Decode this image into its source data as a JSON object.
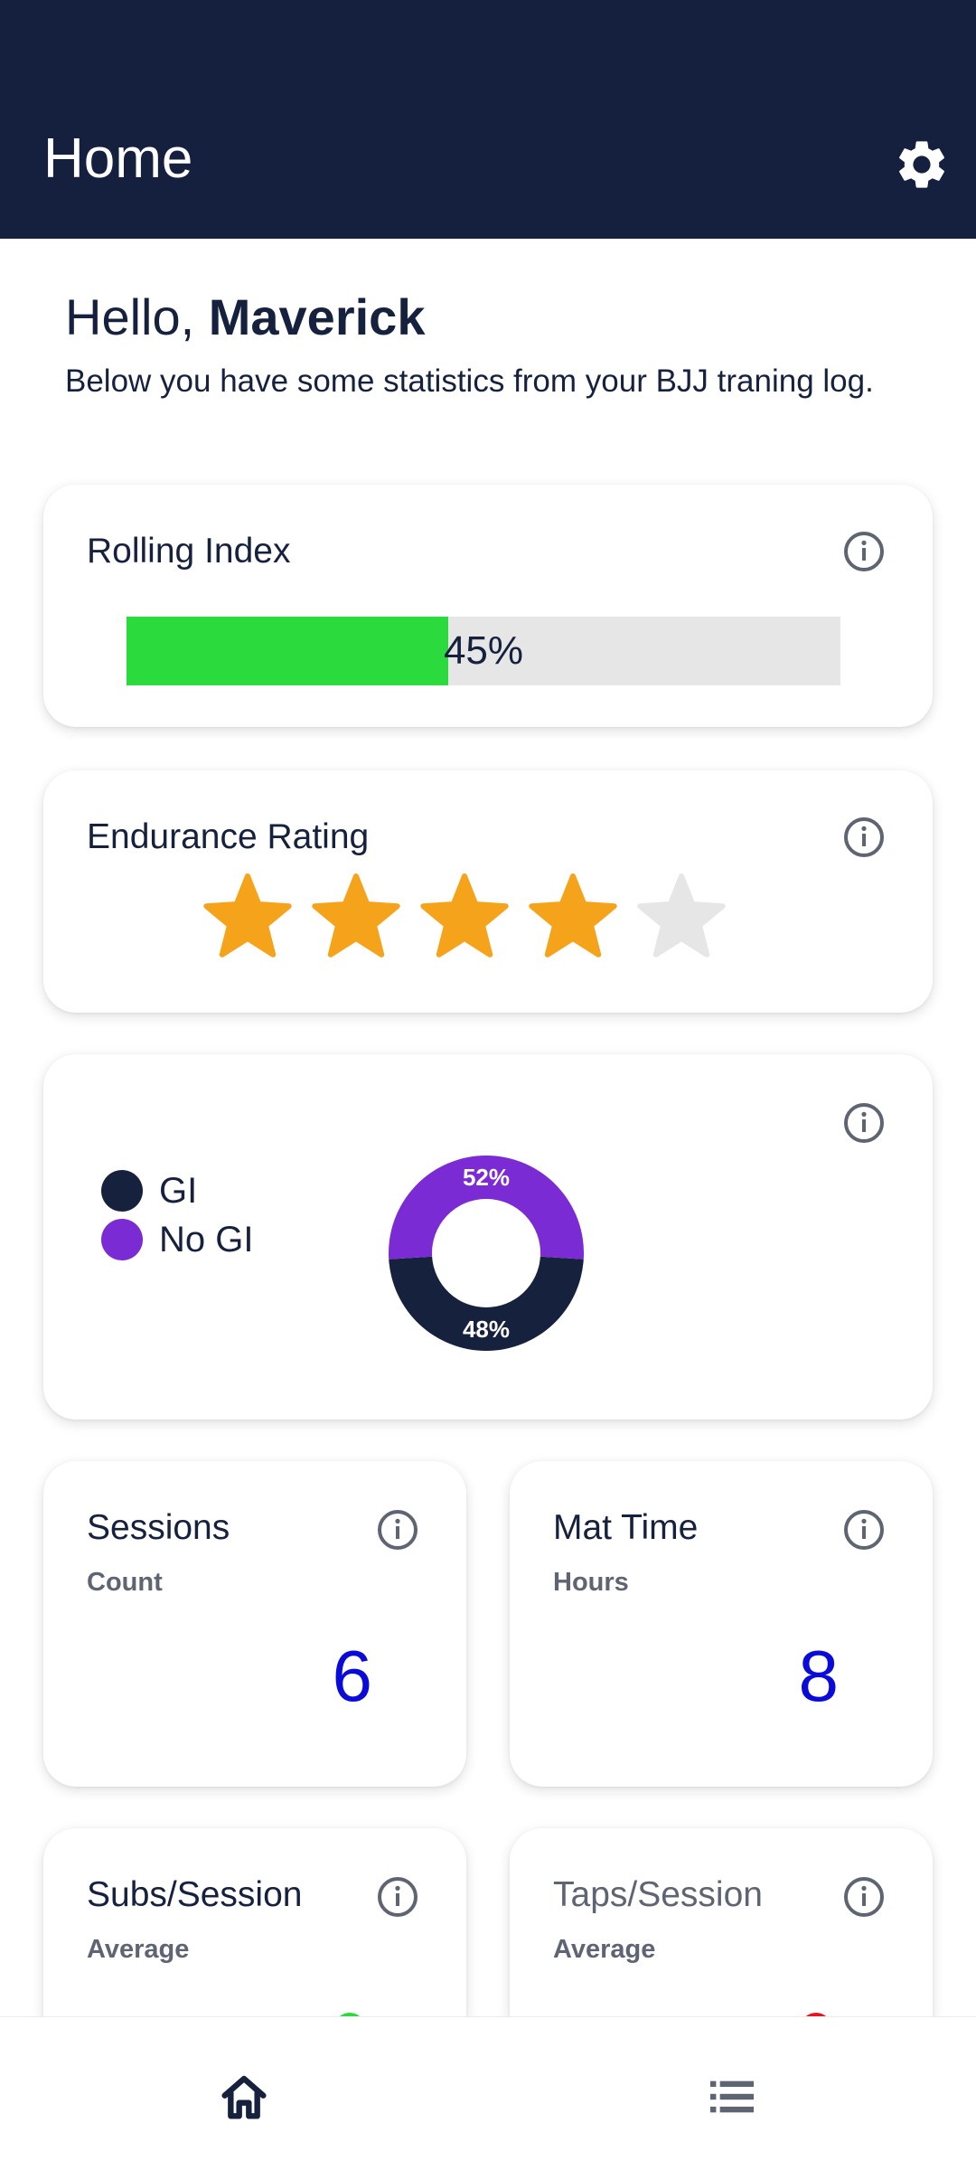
{
  "header": {
    "title": "Home"
  },
  "greeting": {
    "prefix": "Hello, ",
    "name": "Maverick",
    "intro": "Below you have some statistics from your BJJ traning log."
  },
  "rolling_index": {
    "title": "Rolling Index",
    "value_label": "45%",
    "fill_fraction": 0.45,
    "fill_color": "#2bdb3d"
  },
  "endurance": {
    "title": "Endurance Rating",
    "rating": 4,
    "max": 5,
    "on_color": "#f5a31a",
    "off_color": "#e6e6e6"
  },
  "gi_split": {
    "legend": [
      {
        "label": "GI",
        "color": "#16213e"
      },
      {
        "label": "No GI",
        "color": "#7a2bd4"
      }
    ],
    "chart_data": {
      "type": "pie",
      "categories": [
        "GI",
        "No GI"
      ],
      "values": [
        48,
        52
      ],
      "labels": [
        "48%",
        "52%"
      ],
      "colors": [
        "#16213e",
        "#7a2bd4"
      ]
    }
  },
  "stats": [
    {
      "title": "Sessions",
      "subtitle": "Count",
      "value": "6"
    },
    {
      "title": "Mat Time",
      "subtitle": "Hours",
      "value": "8"
    },
    {
      "title": "Subs/Session",
      "subtitle": "Average",
      "indicator_color": "#2bdb3d"
    },
    {
      "title": "Taps/Session",
      "subtitle": "Average",
      "indicator_color": "#e5141e"
    }
  ],
  "icons": {
    "settings": "gear-icon",
    "info": "info-icon",
    "nav_home": "home-icon",
    "nav_list": "list-icon"
  }
}
